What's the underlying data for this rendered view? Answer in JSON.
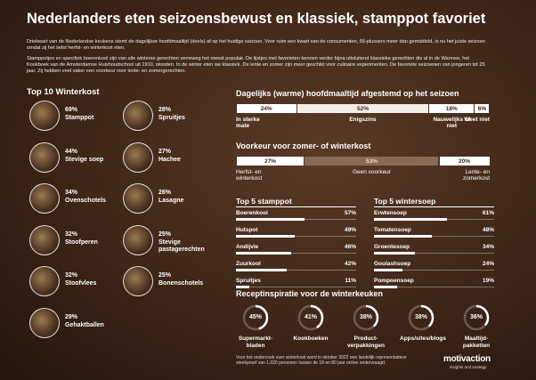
{
  "header": {
    "title": "Nederlanders eten seizoensbewust en klassiek, stamppot favoriet",
    "intro": [
      "Driekwart van de Nederlandse keukens stemt de dagelijkse hoofdmaaltijd (deels) af op het huidige seizoen. Voor ruim een kwart van de consumenten, 55-plussers meer dan gemiddeld, is nu het juiste seizoen omdat zij het liefst herfst- en winterkost eten.",
      "Stamppotjes en specifiek boerenkool zijn van alle winterse gerechten verreweg het meest populair. De lijstjes met favorieten kennen verder bijna uitsluitend klassieke gerechten die al in de Wannee, het Kookboek van de Amsterdamse Huishoudschool uit 1910, stonden. In de winter eten we klassiek. De lente en zomer zijn meer geschikt voor culinaire experimenten. De favoriete seizoenen van jongeren tot 25 jaar. Zij hebben veel vaker een voorkeur voor lente- en zomergerechten."
    ]
  },
  "top10": {
    "title": "Top 10 Winterkost",
    "items": [
      {
        "pct": "69%",
        "name": "Stamppot"
      },
      {
        "pct": "44%",
        "name": "Stevige soep"
      },
      {
        "pct": "34%",
        "name": "Ovenschotels"
      },
      {
        "pct": "32%",
        "name": "Stoofperen"
      },
      {
        "pct": "32%",
        "name": "Stoofvlees"
      },
      {
        "pct": "29%",
        "name": "Gehaktballen"
      },
      {
        "pct": "28%",
        "name": "Spruitjes"
      },
      {
        "pct": "27%",
        "name": "Hachee"
      },
      {
        "pct": "26%",
        "name": "Lasagne"
      },
      {
        "pct": "25%",
        "name": "Stevige pastagerechten"
      },
      {
        "pct": "25%",
        "name": "Bonenschotels"
      }
    ]
  },
  "chart_data": [
    {
      "type": "stacked_bar",
      "title": "Dagelijks (warme) hoofdmaaltijd afgestemd op het seizoen",
      "categories": [
        "In sterke mate",
        "Enigszins",
        "Nauwelijks of niet",
        "Weet niet"
      ],
      "values": [
        24,
        52,
        18,
        6
      ],
      "value_labels": [
        "24%",
        "52%",
        "18%",
        "6%"
      ],
      "colors": [
        "#ffffff",
        "#f4ede6",
        "#ffffff",
        "#ffffff"
      ],
      "xlim": [
        0,
        100
      ]
    },
    {
      "type": "stacked_bar",
      "title": "Voorkeur voor zomer- of winterkost",
      "categories": [
        "Herfst- en winterkost",
        "Geen voorkeur",
        "Lente- en zomerkost"
      ],
      "values": [
        27,
        53,
        20
      ],
      "value_labels": [
        "27%",
        "53%",
        "20%"
      ],
      "colors": [
        "#ffffff",
        "#8a6a56",
        "#ffffff"
      ],
      "xlim": [
        0,
        100
      ]
    },
    {
      "type": "hbar",
      "title": "Top 5 stamppot",
      "categories": [
        "Boerenkool",
        "Hutspot",
        "Andijvie",
        "Zuurkool",
        "Spruitjes"
      ],
      "values": [
        57,
        49,
        46,
        42,
        11
      ],
      "value_labels": [
        "57%",
        "49%",
        "46%",
        "42%",
        "11%"
      ],
      "color": "#ffffff",
      "xlim": [
        0,
        100
      ]
    },
    {
      "type": "hbar",
      "title": "Top 5 wintersoep",
      "categories": [
        "Erwtensoep",
        "Tomatensoep",
        "Groentesoep",
        "Goulashsoep",
        "Pompoensoep"
      ],
      "values": [
        61,
        48,
        34,
        24,
        19
      ],
      "value_labels": [
        "61%",
        "48%",
        "34%",
        "24%",
        "19%"
      ],
      "color": "#ffffff",
      "xlim": [
        0,
        100
      ]
    },
    {
      "type": "donut",
      "title": "Receptinspiratie voor de winterkeuken",
      "categories": [
        "Supermarkt-bladen",
        "Kookboeken",
        "Product-verpakkingen",
        "Apps/sites/blogs",
        "Maaltijd-pakketten"
      ],
      "values": [
        45,
        41,
        38,
        38,
        36
      ],
      "value_labels": [
        "45%",
        "41%",
        "38%",
        "38%",
        "36%"
      ],
      "color": "#ffffff",
      "xlim": [
        0,
        100
      ]
    }
  ],
  "footer": {
    "note": "Voor het onderzoek over winterkost werd in oktober 2022 een landelijk representatieve steekproef van 1.020 personen tussen de 18 en 80 jaar online ondervraagd.",
    "logo": "motivaction",
    "logo_sub": "insights and strategy"
  }
}
